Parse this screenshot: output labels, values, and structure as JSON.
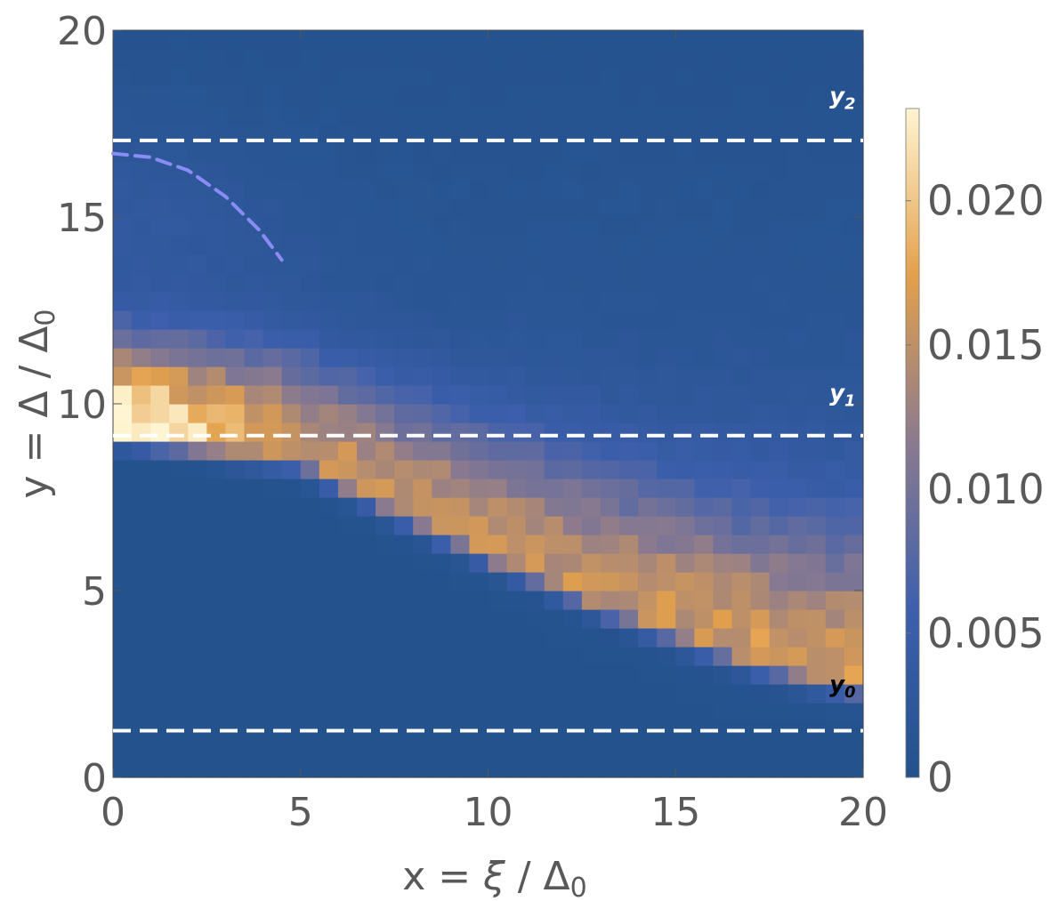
{
  "chart_data": {
    "type": "heatmap",
    "title": "",
    "xlabel": {
      "prefix": "x = ",
      "symbol": "ξ",
      "sep": " / Δ",
      "sub": "0"
    },
    "ylabel": {
      "prefix": "y = ",
      "symbol": "Δ",
      "sep": " / Δ",
      "sub": "0"
    },
    "xlim": [
      0,
      20
    ],
    "ylim": [
      0,
      20
    ],
    "x_ticks": [
      "0",
      "5",
      "10",
      "15",
      "20"
    ],
    "y_ticks": [
      "0",
      "5",
      "10",
      "15",
      "20"
    ],
    "x_tick_values": [
      0,
      5,
      10,
      15,
      20
    ],
    "y_tick_values": [
      0,
      5,
      10,
      15,
      20
    ],
    "colorbar": {
      "range": [
        0,
        0.0232
      ],
      "ticks": [
        "0",
        "0.005",
        "0.010",
        "0.015",
        "0.020"
      ],
      "tick_values": [
        0,
        0.005,
        0.01,
        0.015,
        0.02
      ],
      "colors": [
        "#23528c",
        "#3d5fad",
        "#8a7a8f",
        "#e3a04c",
        "#fff5d2"
      ]
    },
    "grid": {
      "nx": 40,
      "ny": 40
    },
    "ridges": [
      {
        "x0": 0,
        "y0": 9.4,
        "x1": 5,
        "y1": 8.6,
        "x2": 20,
        "y2": 2.6,
        "peak0": 0.0232,
        "peak1": 0.012,
        "peak2": 0.0145,
        "width": 0.75
      },
      {
        "x0": 0,
        "y0": 11.3,
        "x1": 4,
        "y1": 10.7,
        "x2": 20,
        "y2": 6.0,
        "peak0": 0.009,
        "peak1": 0.007,
        "peak2": 0.0055,
        "width": 1.1
      }
    ],
    "horizontal_dashed_lines": [
      {
        "y": 1.25,
        "color": "#ffffff"
      },
      {
        "y": 9.15,
        "color": "#ffffff"
      },
      {
        "y": 17.05,
        "color": "#ffffff"
      }
    ],
    "curve_dashed": {
      "color": "#8a8cf5",
      "points": [
        [
          0,
          16.7
        ],
        [
          1.0,
          16.6
        ],
        [
          2.0,
          16.25
        ],
        [
          3.0,
          15.55
        ],
        [
          3.9,
          14.65
        ],
        [
          4.5,
          13.85
        ]
      ]
    },
    "annotations": [
      {
        "text": "y",
        "sub": "0",
        "x": 19.1,
        "y": 2.5,
        "color": "#000000"
      },
      {
        "text": "y",
        "sub": "1",
        "x": 19.1,
        "y": 10.3,
        "color": "#ffffff"
      },
      {
        "text": "y",
        "sub": "2",
        "x": 19.1,
        "y": 18.25,
        "color": "#ffffff"
      }
    ]
  }
}
